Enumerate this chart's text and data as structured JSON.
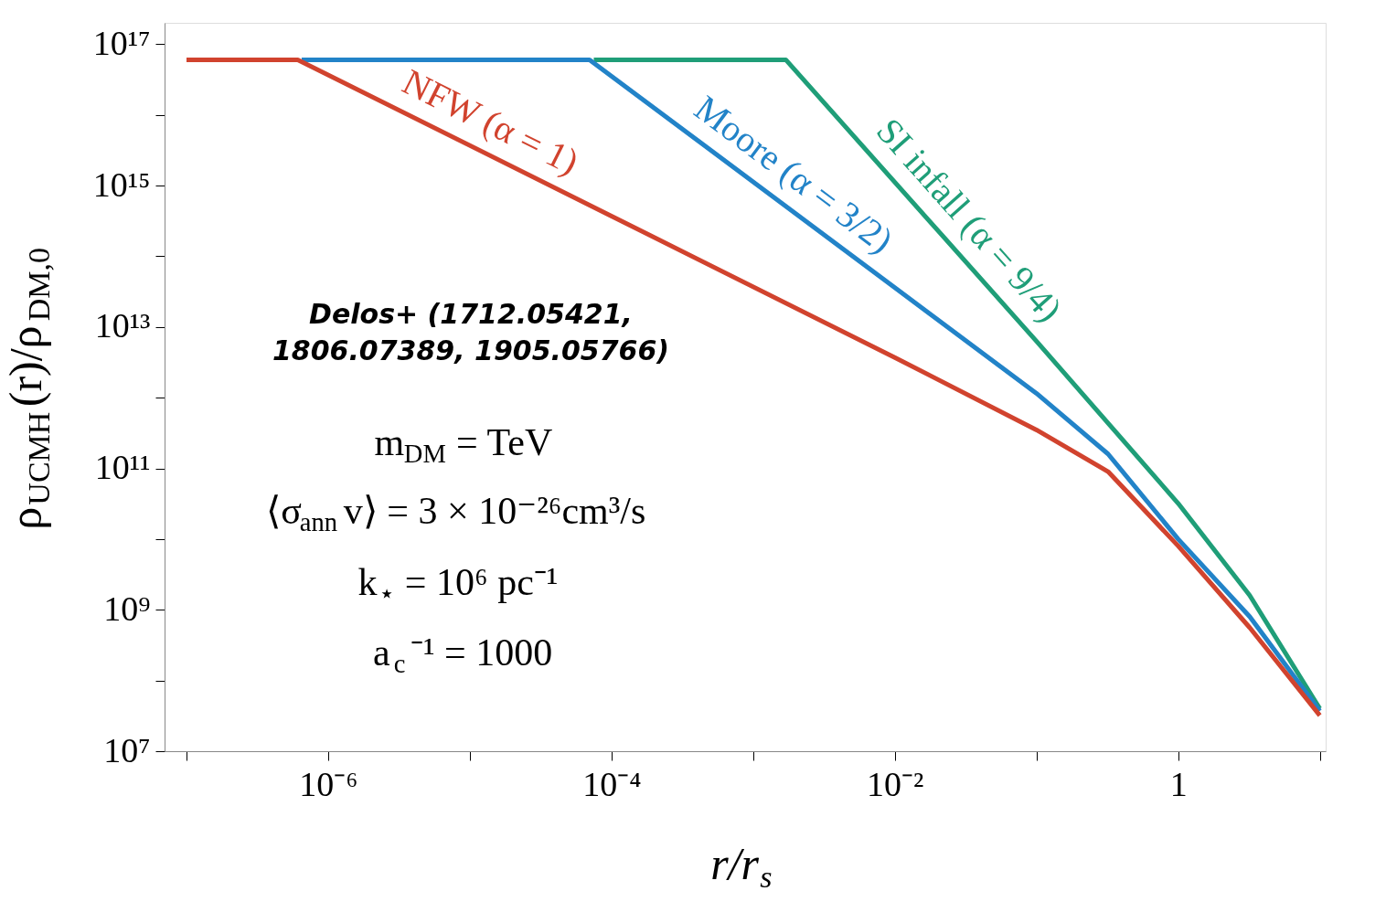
{
  "chart_data": {
    "type": "line",
    "xlabel": "r/r$_{s}$",
    "ylabel": "ρ$_{UCMH}$(r)/ρ$_{DM,0}$",
    "log": "xy",
    "xlim": [
      7e-08,
      11
    ],
    "ylim": [
      10000000.0,
      2e+17
    ],
    "xticks": [
      {
        "value": 1e-07,
        "label": null
      },
      {
        "value": 1e-06,
        "label": "10⁻⁶"
      },
      {
        "value": 1e-05,
        "label": null
      },
      {
        "value": 0.0001,
        "label": "10⁻⁴"
      },
      {
        "value": 0.001,
        "label": null
      },
      {
        "value": 0.01,
        "label": "10⁻²"
      },
      {
        "value": 0.1,
        "label": null
      },
      1,
      {
        "value": 10,
        "label": null
      }
    ],
    "yticks": [
      {
        "value": 10000000.0,
        "label": "10⁷"
      },
      {
        "value": 100000000.0,
        "label": null
      },
      {
        "value": 1000000000.0,
        "label": "10⁹"
      },
      {
        "value": 10000000000.0,
        "label": null
      },
      {
        "value": 100000000000.0,
        "label": "10¹¹"
      },
      {
        "value": 1000000000000.0,
        "label": null
      },
      {
        "value": 10000000000000.0,
        "label": "10¹³"
      },
      {
        "value": 100000000000000.0,
        "label": null
      },
      {
        "value": 1000000000000000.0,
        "label": "10¹⁵"
      },
      {
        "value": 1e+16,
        "label": null
      },
      {
        "value": 1e+17,
        "label": "10¹⁷"
      }
    ],
    "series": [
      {
        "name": "SI infall (α = 9/4)",
        "color": "#1f9e78",
        "x": [
          7.5e-05,
          0.0017,
          0.1,
          1,
          3.2,
          10
        ],
        "values": [
          6e+16,
          6e+16,
          6300000000000.0,
          32000000000.0,
          1600000000.0,
          40000000.0
        ]
      },
      {
        "name": "Moore (α = 3/2)",
        "color": "#2283c8",
        "x": [
          6.5e-07,
          7e-05,
          0.01,
          0.1,
          0.32,
          1,
          3.2,
          10
        ],
        "values": [
          6e+16,
          6e+16,
          36000000000000.0,
          1150000000000.0,
          160000000000.0,
          10000000000.0,
          800000000.0,
          37000000.0
        ]
      },
      {
        "name": "NFW (α = 1)",
        "color": "#d1432e",
        "x": [
          1e-07,
          6.1e-07,
          0.0001,
          0.01,
          0.1,
          0.32,
          1,
          3.2,
          10
        ],
        "values": [
          6e+16,
          6e+16,
          370000000000000.0,
          3700000000000.0,
          350000000000.0,
          90000000000.0,
          8000000000.0,
          560000000.0,
          32000000.0
        ]
      }
    ],
    "annotations": [
      "Delos+ (1712.05421,\n1806.07389, 1905.05766)",
      "m$_{DM}$ = TeV",
      "⟨σ$_{ann}$v⟩ = 3 × 10⁻²⁶cm³/s",
      "k$_{⋆}$ = 10⁶ pc⁻¹",
      "a$_{c}$⁻¹ = 1000"
    ]
  }
}
